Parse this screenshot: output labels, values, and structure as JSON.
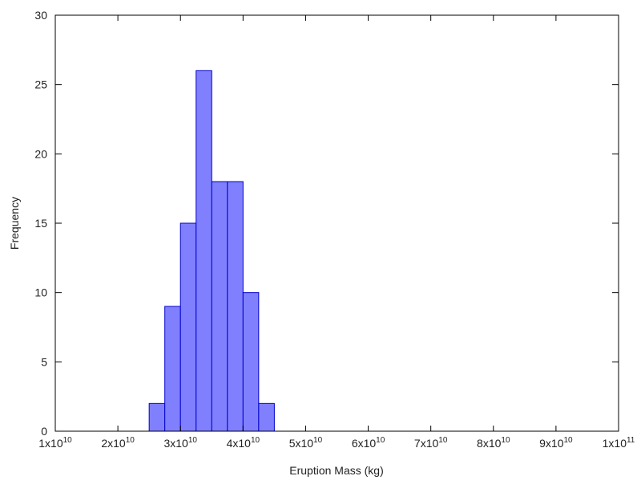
{
  "chart_data": {
    "type": "bar",
    "subtype": "histogram",
    "title": "",
    "xlabel": "Eruption Mass (kg)",
    "ylabel": "Frequency",
    "xlim": [
      10000000000.0,
      100000000000.0
    ],
    "ylim": [
      0,
      30
    ],
    "grid": false,
    "legend": null,
    "bin_width": 2500000000.0,
    "bins": [
      {
        "start": 25000000000.0,
        "end": 27500000000.0,
        "count": 2
      },
      {
        "start": 27500000000.0,
        "end": 30000000000.0,
        "count": 9
      },
      {
        "start": 30000000000.0,
        "end": 32500000000.0,
        "count": 15
      },
      {
        "start": 32500000000.0,
        "end": 35000000000.0,
        "count": 26
      },
      {
        "start": 35000000000.0,
        "end": 37500000000.0,
        "count": 18
      },
      {
        "start": 37500000000.0,
        "end": 40000000000.0,
        "count": 18
      },
      {
        "start": 40000000000.0,
        "end": 42500000000.0,
        "count": 10
      },
      {
        "start": 42500000000.0,
        "end": 45000000000.0,
        "count": 2
      }
    ],
    "categories": [
      "2.5e10-2.75e10",
      "2.75e10-3.0e10",
      "3.0e10-3.25e10",
      "3.25e10-3.5e10",
      "3.5e10-3.75e10",
      "3.75e10-4.0e10",
      "4.0e10-4.25e10",
      "4.25e10-4.5e10"
    ],
    "values": [
      2,
      9,
      15,
      26,
      18,
      18,
      10,
      2
    ],
    "x_ticks": [
      {
        "value": 10000000000.0,
        "mantissa": "1x10",
        "exp": "10"
      },
      {
        "value": 20000000000.0,
        "mantissa": "2x10",
        "exp": "10"
      },
      {
        "value": 30000000000.0,
        "mantissa": "3x10",
        "exp": "10"
      },
      {
        "value": 40000000000.0,
        "mantissa": "4x10",
        "exp": "10"
      },
      {
        "value": 50000000000.0,
        "mantissa": "5x10",
        "exp": "10"
      },
      {
        "value": 60000000000.0,
        "mantissa": "6x10",
        "exp": "10"
      },
      {
        "value": 70000000000.0,
        "mantissa": "7x10",
        "exp": "10"
      },
      {
        "value": 80000000000.0,
        "mantissa": "8x10",
        "exp": "10"
      },
      {
        "value": 90000000000.0,
        "mantissa": "9x10",
        "exp": "10"
      },
      {
        "value": 100000000000.0,
        "mantissa": "1x10",
        "exp": "11"
      }
    ],
    "y_ticks": [
      0,
      5,
      10,
      15,
      20,
      25,
      30
    ],
    "colors": {
      "bar_fill": "#8080ff",
      "bar_edge": "#0000cc",
      "axis": "#000000"
    }
  }
}
